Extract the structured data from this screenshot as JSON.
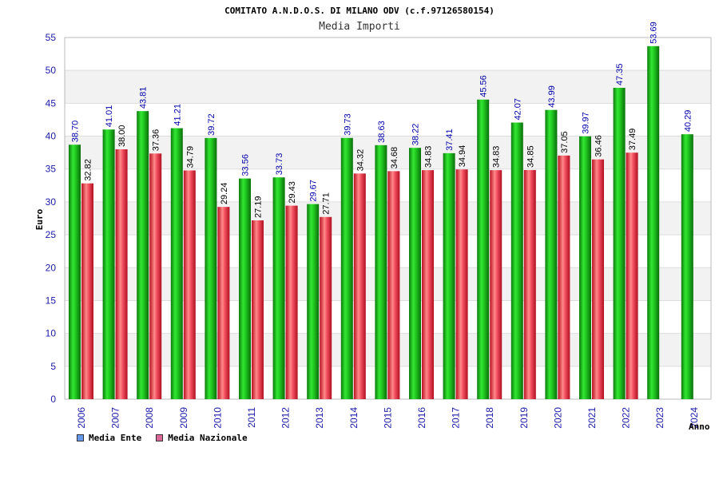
{
  "chart_data": {
    "type": "bar",
    "title": "COMITATO A.N.D.O.S. DI MILANO ODV (c.f.97126580154)",
    "subtitle": "Media Importi",
    "xlabel": "Anno",
    "ylabel": "Euro",
    "ylim": [
      0,
      55
    ],
    "yticks": [
      0,
      5,
      10,
      15,
      20,
      25,
      30,
      35,
      40,
      45,
      50,
      55
    ],
    "grid": true,
    "legend_position": "bottom-left",
    "categories": [
      "2006",
      "2007",
      "2008",
      "2009",
      "2010",
      "2011",
      "2012",
      "2013",
      "2014",
      "2015",
      "2016",
      "2017",
      "2018",
      "2019",
      "2020",
      "2021",
      "2022",
      "2023",
      "2024"
    ],
    "series": [
      {
        "name": "Media Ente",
        "color": "#22bb22",
        "legend_color": "#6699ee",
        "values": [
          38.7,
          41.01,
          43.81,
          41.21,
          39.72,
          33.56,
          33.73,
          29.67,
          39.73,
          38.63,
          38.22,
          37.41,
          45.56,
          42.07,
          43.99,
          39.97,
          47.35,
          53.69,
          40.29
        ],
        "labels": [
          "38.70",
          "41.01",
          "43.81",
          "41.21",
          "39.72",
          "33.56",
          "33.73",
          "29.67",
          "39.73",
          "38.63",
          "38.22",
          "37.41",
          "45.56",
          "42.07",
          "43.99",
          "39.97",
          "47.35",
          "53.69",
          "40.29"
        ]
      },
      {
        "name": "Media Nazionale",
        "color": "#ee3344",
        "legend_color": "#dd6699",
        "values": [
          32.82,
          38.0,
          37.36,
          34.79,
          29.24,
          27.19,
          29.43,
          27.71,
          34.32,
          34.68,
          34.83,
          34.94,
          34.83,
          34.85,
          37.05,
          36.46,
          37.49,
          null,
          null
        ],
        "labels": [
          "32.82",
          "38.00",
          "37.36",
          "34.79",
          "29.24",
          "27.19",
          "29.43",
          "27.71",
          "34.32",
          "34.68",
          "34.83",
          "34.94",
          "34.83",
          "34.85",
          "37.05",
          "36.46",
          "37.49",
          null,
          null
        ]
      }
    ]
  }
}
